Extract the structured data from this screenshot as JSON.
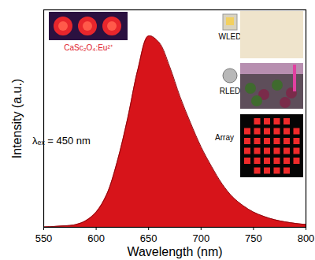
{
  "chart_data": {
    "type": "area",
    "x": [
      550,
      560,
      570,
      580,
      590,
      600,
      610,
      620,
      630,
      640,
      650,
      660,
      670,
      680,
      690,
      700,
      710,
      720,
      730,
      740,
      750,
      760,
      770,
      780,
      790,
      800
    ],
    "values": [
      0.002,
      0.004,
      0.007,
      0.012,
      0.03,
      0.07,
      0.15,
      0.3,
      0.5,
      0.73,
      0.88,
      0.85,
      0.74,
      0.6,
      0.48,
      0.37,
      0.28,
      0.2,
      0.14,
      0.1,
      0.07,
      0.05,
      0.035,
      0.025,
      0.018,
      0.013
    ],
    "color": "#d7141a",
    "xlabel": "Wavelength (nm)",
    "ylabel": "Intensity (a.u.)",
    "xlim": [
      550,
      800
    ],
    "xticks": [
      550,
      600,
      650,
      700,
      750,
      800
    ],
    "ylim": [
      0,
      1
    ],
    "yticks": [],
    "tick_labels": "x",
    "annotations": [
      "CaSc₂O₄:Eu²⁺",
      "λₑₓ = 450 nm",
      "WLED",
      "RLED",
      "Array"
    ]
  }
}
